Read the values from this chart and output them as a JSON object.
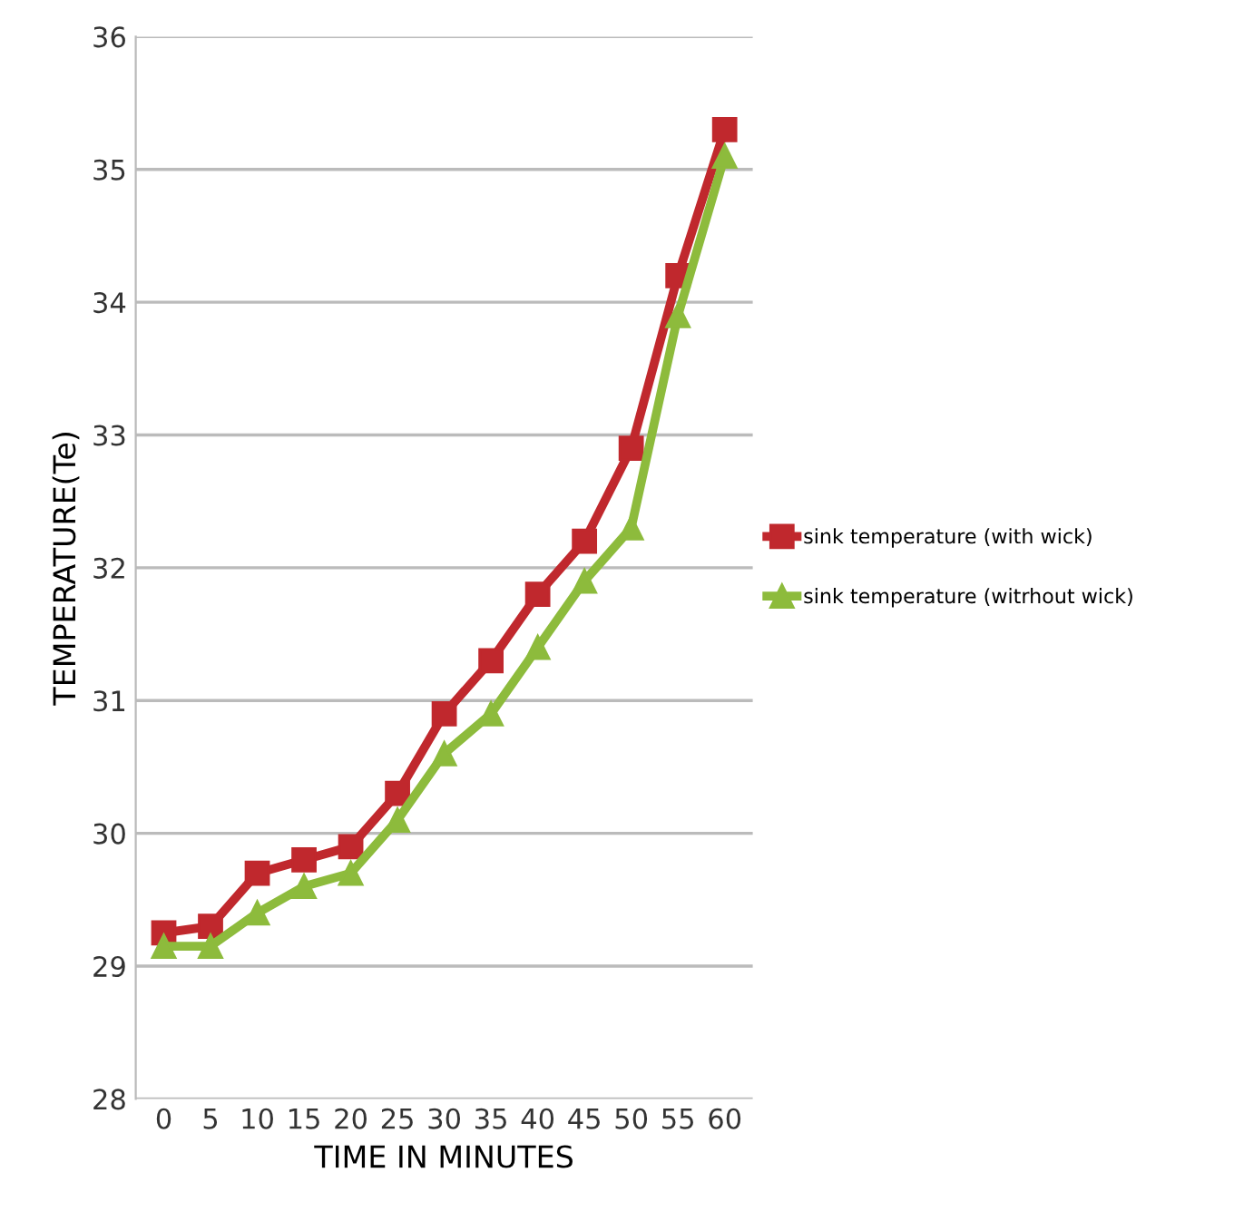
{
  "chart_data": {
    "type": "line",
    "xlabel": "TIME IN MINUTES",
    "ylabel": "TEMPERATURE(Te)",
    "categories": [
      "0",
      "5",
      "10",
      "15",
      "20",
      "25",
      "30",
      "35",
      "40",
      "45",
      "50",
      "55",
      "60"
    ],
    "series": [
      {
        "name": "sink temperature (with wick)",
        "color": "#c0282d",
        "marker": "square",
        "values": [
          29.25,
          29.3,
          29.7,
          29.8,
          29.9,
          30.3,
          30.9,
          31.3,
          31.8,
          32.2,
          32.9,
          34.2,
          35.3
        ]
      },
      {
        "name": "sink temperature (witrhout wick)",
        "color": "#8dbb3c",
        "marker": "triangle",
        "values": [
          29.15,
          29.15,
          29.4,
          29.6,
          29.7,
          30.1,
          30.6,
          30.9,
          31.4,
          31.9,
          32.3,
          33.9,
          35.1
        ]
      }
    ],
    "ylim": [
      28,
      36
    ],
    "yticks": [
      28,
      29,
      30,
      31,
      32,
      33,
      34,
      35,
      36
    ],
    "grid": "y",
    "legend": "right",
    "line_style": "solid"
  }
}
